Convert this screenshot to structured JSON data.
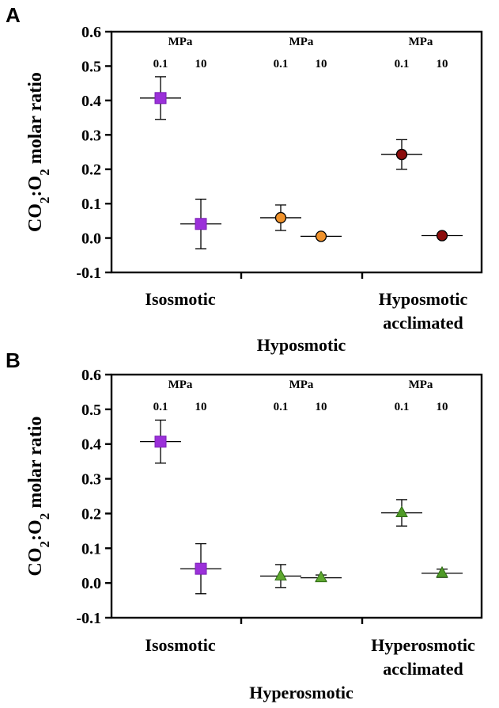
{
  "chart_data": [
    {
      "panel": "A",
      "type": "scatter",
      "ylabel": "CO2:O2 molar ratio",
      "ylim": [
        -0.1,
        0.6
      ],
      "yticks": [
        "0.6",
        "0.5",
        "0.4",
        "0.3",
        "0.2",
        "0.1",
        "0.0",
        "-0.1"
      ],
      "pressure_header": "MPa",
      "pressures": [
        "0.1",
        "10"
      ],
      "categories": [
        "Isosmotic",
        "Hyposmotic",
        "Hyposmotic acclimated"
      ],
      "category_lines": [
        [
          "Isosmotic"
        ],
        [
          "Hyposmotic"
        ],
        [
          "Hyposmotic",
          "acclimated"
        ]
      ],
      "series": [
        {
          "name": "Isosmotic",
          "marker": "square",
          "color": "#9b30d9",
          "points": [
            {
              "pressure": "0.1",
              "value": 0.407,
              "err": 0.062
            },
            {
              "pressure": "10",
              "value": 0.041,
              "err": 0.072
            }
          ]
        },
        {
          "name": "Hyposmotic",
          "marker": "circle",
          "color": "#f0922b",
          "points": [
            {
              "pressure": "0.1",
              "value": 0.059,
              "err": 0.037
            },
            {
              "pressure": "10",
              "value": 0.005,
              "err": 0.0
            }
          ]
        },
        {
          "name": "Hyposmotic acclimated",
          "marker": "circle",
          "color": "#8b0c0c",
          "points": [
            {
              "pressure": "0.1",
              "value": 0.243,
              "err": 0.043
            },
            {
              "pressure": "10",
              "value": 0.007,
              "err": 0.0
            }
          ]
        }
      ]
    },
    {
      "panel": "B",
      "type": "scatter",
      "ylabel": "CO2:O2 molar ratio",
      "ylim": [
        -0.1,
        0.6
      ],
      "yticks": [
        "0.6",
        "0.5",
        "0.4",
        "0.3",
        "0.2",
        "0.1",
        "0.0",
        "-0.1"
      ],
      "pressure_header": "MPa",
      "pressures": [
        "0.1",
        "10"
      ],
      "categories": [
        "Isosmotic",
        "Hyperosmotic",
        "Hyperosmotic acclimated"
      ],
      "category_lines": [
        [
          "Isosmotic"
        ],
        [
          "Hyperosmotic"
        ],
        [
          "Hyperosmotic",
          "acclimated"
        ]
      ],
      "series": [
        {
          "name": "Isosmotic",
          "marker": "square",
          "color": "#9b30d9",
          "points": [
            {
              "pressure": "0.1",
              "value": 0.407,
              "err": 0.062
            },
            {
              "pressure": "10",
              "value": 0.041,
              "err": 0.072
            }
          ]
        },
        {
          "name": "Hyperosmotic",
          "marker": "triangle",
          "color": "#5ea82f",
          "points": [
            {
              "pressure": "0.1",
              "value": 0.02,
              "err": 0.033
            },
            {
              "pressure": "10",
              "value": 0.015,
              "err": 0.008
            }
          ]
        },
        {
          "name": "Hyperosmotic acclimated",
          "marker": "triangle",
          "color": "#4f9a27",
          "points": [
            {
              "pressure": "0.1",
              "value": 0.202,
              "err": 0.038
            },
            {
              "pressure": "10",
              "value": 0.028,
              "err": 0.012
            }
          ]
        }
      ]
    }
  ]
}
